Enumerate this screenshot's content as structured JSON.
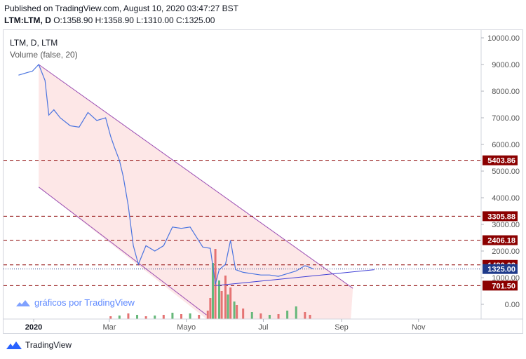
{
  "header": {
    "published": "Published on TradingView.com, August 10, 2020 03:47:27 BST",
    "symbol": "LTM:LTM, D",
    "ohlc": "O:1358.90 H:1358.90 L:1310.00 C:1325.00"
  },
  "legend": {
    "title": "LTM, D, LTM",
    "volume": "Volume (false, 20)"
  },
  "watermark": "gráficos por TradingView",
  "footer": {
    "brand": "TradingView",
    "icon": "tradingview-logo-icon"
  },
  "colors": {
    "price_line": "#4a74e0",
    "channel_fill": "#fde4e4",
    "channel_line": "#9c4fb3",
    "level_line": "#8b0000",
    "level_label_bg": "#8b0000",
    "current_label_bg": "#1e3a8a",
    "volume_up": "#66b87a",
    "volume_down": "#e57373",
    "trendline": "#3f3fd6"
  },
  "chart_data": {
    "type": "line",
    "title": "LTM, D, LTM",
    "x_ticks": [
      "2020",
      "Mar",
      "Mayo",
      "Jul",
      "Sep",
      "Nov"
    ],
    "y_ticks": [
      "10000.00",
      "9000.00",
      "8000.00",
      "7000.00",
      "6000.00",
      "5000.00",
      "4000.00",
      "3000.00",
      "2000.00",
      "1000.00",
      "0.00"
    ],
    "price_series": [
      {
        "x": "2019-12-20",
        "y": 8600
      },
      {
        "x": "2019-12-27",
        "y": 8700
      },
      {
        "x": "2019-12-31",
        "y": 8750
      },
      {
        "x": "2020-01-05",
        "y": 9000
      },
      {
        "x": "2020-01-10",
        "y": 8400
      },
      {
        "x": "2020-01-13",
        "y": 7100
      },
      {
        "x": "2020-01-17",
        "y": 7300
      },
      {
        "x": "2020-01-22",
        "y": 7000
      },
      {
        "x": "2020-01-30",
        "y": 6700
      },
      {
        "x": "2020-02-06",
        "y": 6650
      },
      {
        "x": "2020-02-13",
        "y": 7200
      },
      {
        "x": "2020-02-20",
        "y": 6900
      },
      {
        "x": "2020-02-27",
        "y": 7000
      },
      {
        "x": "2020-03-02",
        "y": 6300
      },
      {
        "x": "2020-03-05",
        "y": 5900
      },
      {
        "x": "2020-03-09",
        "y": 5400
      },
      {
        "x": "2020-03-12",
        "y": 4800
      },
      {
        "x": "2020-03-16",
        "y": 3700
      },
      {
        "x": "2020-03-20",
        "y": 2200
      },
      {
        "x": "2020-03-24",
        "y": 1500
      },
      {
        "x": "2020-03-30",
        "y": 2200
      },
      {
        "x": "2020-04-06",
        "y": 2000
      },
      {
        "x": "2020-04-13",
        "y": 2200
      },
      {
        "x": "2020-04-20",
        "y": 2900
      },
      {
        "x": "2020-04-27",
        "y": 2850
      },
      {
        "x": "2020-05-04",
        "y": 2900
      },
      {
        "x": "2020-05-08",
        "y": 2600
      },
      {
        "x": "2020-05-14",
        "y": 2150
      },
      {
        "x": "2020-05-20",
        "y": 2100
      },
      {
        "x": "2020-05-24",
        "y": 750
      },
      {
        "x": "2020-05-27",
        "y": 1300
      },
      {
        "x": "2020-06-01",
        "y": 1500
      },
      {
        "x": "2020-06-05",
        "y": 2400
      },
      {
        "x": "2020-06-09",
        "y": 1300
      },
      {
        "x": "2020-06-15",
        "y": 1200
      },
      {
        "x": "2020-06-22",
        "y": 1150
      },
      {
        "x": "2020-06-29",
        "y": 1100
      },
      {
        "x": "2020-07-06",
        "y": 1100
      },
      {
        "x": "2020-07-13",
        "y": 1050
      },
      {
        "x": "2020-07-20",
        "y": 1150
      },
      {
        "x": "2020-07-27",
        "y": 1250
      },
      {
        "x": "2020-08-03",
        "y": 1450
      },
      {
        "x": "2020-08-07",
        "y": 1380
      },
      {
        "x": "2020-08-10",
        "y": 1325
      }
    ],
    "levels": [
      {
        "value": 5403.86,
        "label": "5403.86"
      },
      {
        "value": 3305.88,
        "label": "3305.88"
      },
      {
        "value": 2406.18,
        "label": "2406.18"
      },
      {
        "value": 1480.02,
        "label": "1480.02"
      },
      {
        "value": 701.5,
        "label": "701.50"
      }
    ],
    "current_price": {
      "value": 1325.0,
      "label": "1325.00"
    },
    "channel": {
      "upper": [
        {
          "x": "2020-01-05",
          "y": 9000
        },
        {
          "x": "2020-09-10",
          "y": 600
        }
      ],
      "lower": [
        {
          "x": "2020-01-05",
          "y": 4400
        },
        {
          "x": "2020-05-17",
          "y": -400
        }
      ]
    },
    "trendline": [
      {
        "x": "2020-05-24",
        "y": 700
      },
      {
        "x": "2020-09-27",
        "y": 1300
      }
    ],
    "volume_bars": [
      {
        "x": "2020-03-02",
        "v": 4,
        "up": false
      },
      {
        "x": "2020-03-09",
        "v": 5,
        "up": true
      },
      {
        "x": "2020-03-16",
        "v": 8,
        "up": false
      },
      {
        "x": "2020-03-23",
        "v": 6,
        "up": true
      },
      {
        "x": "2020-03-30",
        "v": 4,
        "up": false
      },
      {
        "x": "2020-04-06",
        "v": 5,
        "up": true
      },
      {
        "x": "2020-04-13",
        "v": 6,
        "up": false
      },
      {
        "x": "2020-04-20",
        "v": 9,
        "up": true
      },
      {
        "x": "2020-04-27",
        "v": 7,
        "up": false
      },
      {
        "x": "2020-05-04",
        "v": 8,
        "up": true
      },
      {
        "x": "2020-05-11",
        "v": 6,
        "up": false
      },
      {
        "x": "2020-05-18",
        "v": 12,
        "up": false
      },
      {
        "x": "2020-05-20",
        "v": 30,
        "up": false
      },
      {
        "x": "2020-05-22",
        "v": 80,
        "up": true
      },
      {
        "x": "2020-05-24",
        "v": 100,
        "up": false
      },
      {
        "x": "2020-05-27",
        "v": 55,
        "up": true
      },
      {
        "x": "2020-05-29",
        "v": 40,
        "up": false
      },
      {
        "x": "2020-06-01",
        "v": 62,
        "up": false
      },
      {
        "x": "2020-06-03",
        "v": 35,
        "up": true
      },
      {
        "x": "2020-06-05",
        "v": 45,
        "up": false
      },
      {
        "x": "2020-06-08",
        "v": 25,
        "up": true
      },
      {
        "x": "2020-06-10",
        "v": 20,
        "up": false
      },
      {
        "x": "2020-06-15",
        "v": 15,
        "up": false
      },
      {
        "x": "2020-06-22",
        "v": 10,
        "up": true
      },
      {
        "x": "2020-06-29",
        "v": 8,
        "up": false
      },
      {
        "x": "2020-07-06",
        "v": 6,
        "up": true
      },
      {
        "x": "2020-07-13",
        "v": 7,
        "up": false
      },
      {
        "x": "2020-07-20",
        "v": 12,
        "up": true
      },
      {
        "x": "2020-07-27",
        "v": 18,
        "up": true
      },
      {
        "x": "2020-08-03",
        "v": 10,
        "up": false
      },
      {
        "x": "2020-08-07",
        "v": 6,
        "up": false
      }
    ]
  }
}
